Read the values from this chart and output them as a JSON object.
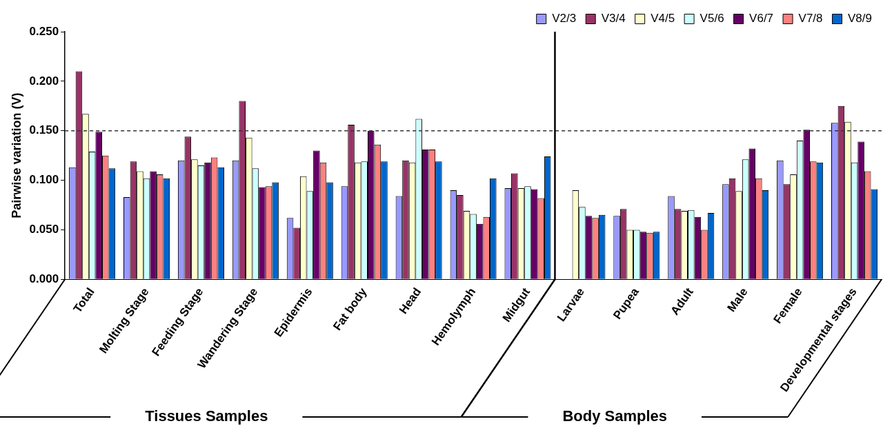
{
  "chart_data": {
    "type": "bar",
    "ylabel": "Pairwise variation (V)",
    "categories": [
      "Total",
      "Molting Stage",
      "Feeding Stage",
      "Wandering Stage",
      "Epidermis",
      "Fat body",
      "Head",
      "Hemolymph",
      "Midgut",
      "Larvae",
      "Pupea",
      "Adult",
      "Male",
      "Female",
      "Developmental stages"
    ],
    "series": [
      {
        "name": "V2/3",
        "color": "#9999ff",
        "values": [
          0.113,
          0.083,
          0.12,
          0.12,
          0.062,
          0.094,
          0.084,
          0.09,
          0.092,
          null,
          0.064,
          0.084,
          0.096,
          0.12,
          0.158
        ]
      },
      {
        "name": "V3/4",
        "color": "#993366",
        "values": [
          0.21,
          0.119,
          0.144,
          0.18,
          0.052,
          0.156,
          0.12,
          0.085,
          0.107,
          null,
          0.071,
          0.071,
          0.102,
          0.096,
          0.175
        ]
      },
      {
        "name": "V4/5",
        "color": "#ffffcc",
        "values": [
          0.167,
          0.109,
          0.121,
          0.143,
          0.104,
          0.118,
          0.118,
          0.069,
          0.092,
          0.09,
          0.05,
          0.069,
          0.089,
          0.106,
          0.159
        ]
      },
      {
        "name": "V5/6",
        "color": "#ccffff",
        "values": [
          0.129,
          0.102,
          0.115,
          0.112,
          0.089,
          0.119,
          0.162,
          0.066,
          0.094,
          0.073,
          0.05,
          0.07,
          0.121,
          0.14,
          0.118
        ]
      },
      {
        "name": "V6/7",
        "color": "#660066",
        "values": [
          0.149,
          0.109,
          0.118,
          0.093,
          0.13,
          0.15,
          0.131,
          0.056,
          0.091,
          0.064,
          0.048,
          0.063,
          0.132,
          0.151,
          0.139
        ]
      },
      {
        "name": "V7/8",
        "color": "#ff8080",
        "values": [
          0.125,
          0.106,
          0.123,
          0.094,
          0.118,
          0.136,
          0.131,
          0.063,
          0.082,
          0.062,
          0.047,
          0.05,
          0.102,
          0.119,
          0.109
        ]
      },
      {
        "name": "V8/9",
        "color": "#0066cc",
        "values": [
          0.112,
          0.102,
          0.113,
          0.098,
          0.098,
          0.119,
          0.119,
          0.102,
          0.124,
          0.065,
          0.048,
          0.067,
          0.09,
          0.118,
          0.091
        ]
      }
    ],
    "ylim": [
      0,
      0.25
    ],
    "yticks": [
      {
        "value": 0,
        "label": "0.000"
      },
      {
        "value": 0.05,
        "label": "0.050"
      },
      {
        "value": 0.1,
        "label": "0.100"
      },
      {
        "value": 0.15,
        "label": "0.150"
      },
      {
        "value": 0.2,
        "label": "0.200"
      },
      {
        "value": 0.25,
        "label": "0.250"
      }
    ],
    "ref_lines": [
      {
        "axis": "y",
        "value": 0.15,
        "color": "#333333",
        "line_style": "dashed"
      }
    ],
    "annotations": [
      "Tissues Samples",
      "Body Samples"
    ],
    "grid": false,
    "legend": "top right"
  }
}
